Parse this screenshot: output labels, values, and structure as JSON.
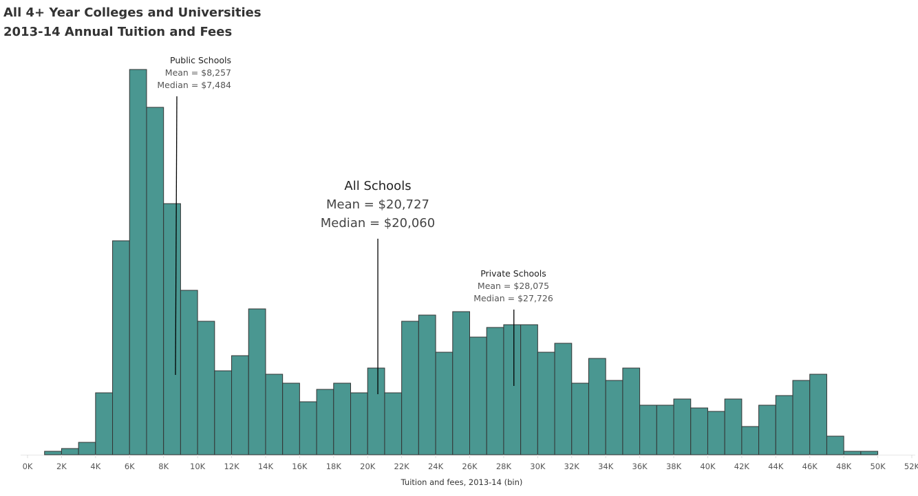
{
  "title_lines": [
    "All 4+ Year Colleges and Universities",
    "2013-14 Annual Tuition and Fees"
  ],
  "chart_data": {
    "type": "bar",
    "subtype": "histogram",
    "xlabel": "Tuition and fees, 2013-14 (bin)",
    "ylabel": "",
    "bin_width_k": 1,
    "xlim_k": [
      0,
      52
    ],
    "x_ticks": [
      "0K",
      "2K",
      "4K",
      "6K",
      "8K",
      "10K",
      "12K",
      "14K",
      "16K",
      "18K",
      "20K",
      "22K",
      "24K",
      "26K",
      "28K",
      "30K",
      "32K",
      "34K",
      "36K",
      "38K",
      "40K",
      "42K",
      "44K",
      "46K",
      "48K",
      "50K",
      "52K"
    ],
    "bin_starts_k": [
      1,
      2,
      3,
      4,
      5,
      6,
      7,
      8,
      9,
      10,
      11,
      12,
      13,
      14,
      15,
      16,
      17,
      18,
      19,
      20,
      21,
      22,
      23,
      24,
      25,
      26,
      27,
      28,
      29,
      30,
      31,
      32,
      33,
      34,
      35,
      36,
      37,
      38,
      39,
      40,
      41,
      42,
      43,
      44,
      45,
      46,
      47,
      48,
      49
    ],
    "values_relative": [
      5,
      9,
      18,
      90,
      311,
      560,
      505,
      365,
      239,
      194,
      122,
      144,
      212,
      117,
      104,
      77,
      95,
      104,
      90,
      126,
      90,
      194,
      203,
      149,
      208,
      171,
      185,
      189,
      189,
      149,
      162,
      104,
      140,
      108,
      126,
      72,
      72,
      81,
      68,
      63,
      81,
      41,
      72,
      86,
      108,
      117,
      27,
      5,
      5
    ],
    "y_axis_shown": false,
    "grid": false,
    "colors": {
      "bar": "#4a9791",
      "bar_border": "#333333",
      "reference_line": "#000000"
    },
    "annotations": [
      {
        "heading": "Public Schools",
        "mean": "Mean = $8,257",
        "median": "Median = $7,484",
        "line_x_k": 8.7
      },
      {
        "heading": "All Schools",
        "mean": "Mean = $20,727",
        "median": "Median = $20,060",
        "line_x_k": 20.6
      },
      {
        "heading": "Private Schools",
        "mean": "Mean = $28,075",
        "median": "Median = $27,726",
        "line_x_k": 28.6
      }
    ]
  }
}
